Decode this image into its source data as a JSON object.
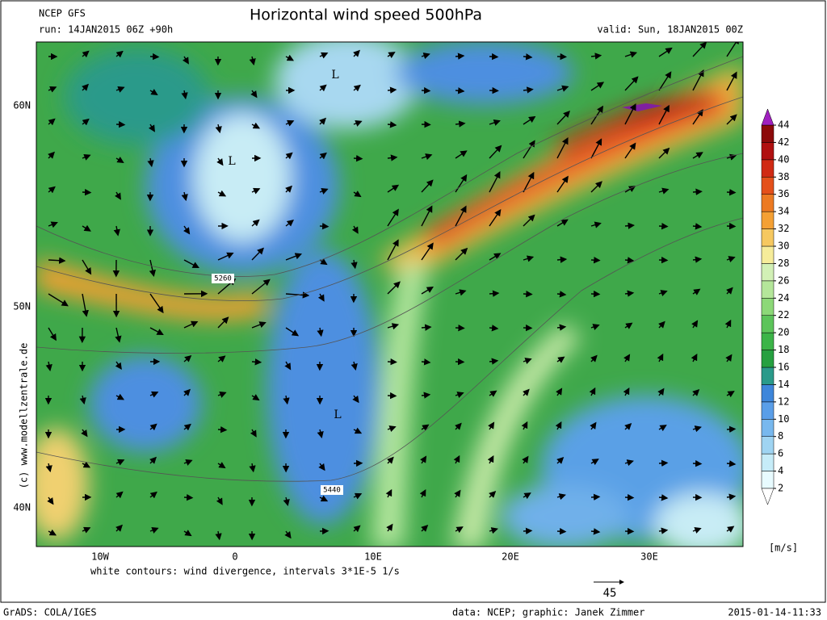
{
  "header": {
    "model": "NCEP GFS",
    "title": "Horizontal wind speed 500hPa",
    "run": "run: 14JAN2015 06Z +90h",
    "valid": "valid: Sun, 18JAN2015 00Z"
  },
  "map": {
    "lat_labels": [
      "60N",
      "50N",
      "40N"
    ],
    "lon_labels": [
      "10W",
      "0",
      "10E",
      "20E",
      "30E"
    ],
    "contour_labels": [
      "5260",
      "5440"
    ],
    "low_labels": [
      "L",
      "L",
      "L"
    ],
    "watermark": "(c) www.modellzentrale.de"
  },
  "colorbar": {
    "ticks": [
      2,
      4,
      6,
      8,
      10,
      12,
      14,
      16,
      18,
      20,
      22,
      24,
      26,
      28,
      30,
      32,
      34,
      36,
      38,
      40,
      42,
      44
    ],
    "unit": "[m/s]"
  },
  "footer": {
    "note": "white contours: wind divergence, intervals 3*1E-5 1/s",
    "vector_ref": "45",
    "software": "GrADS: COLA/IGES",
    "credit": "data: NCEP; graphic: Janek Zimmer",
    "timestamp": "2015-01-14-11:33"
  }
}
